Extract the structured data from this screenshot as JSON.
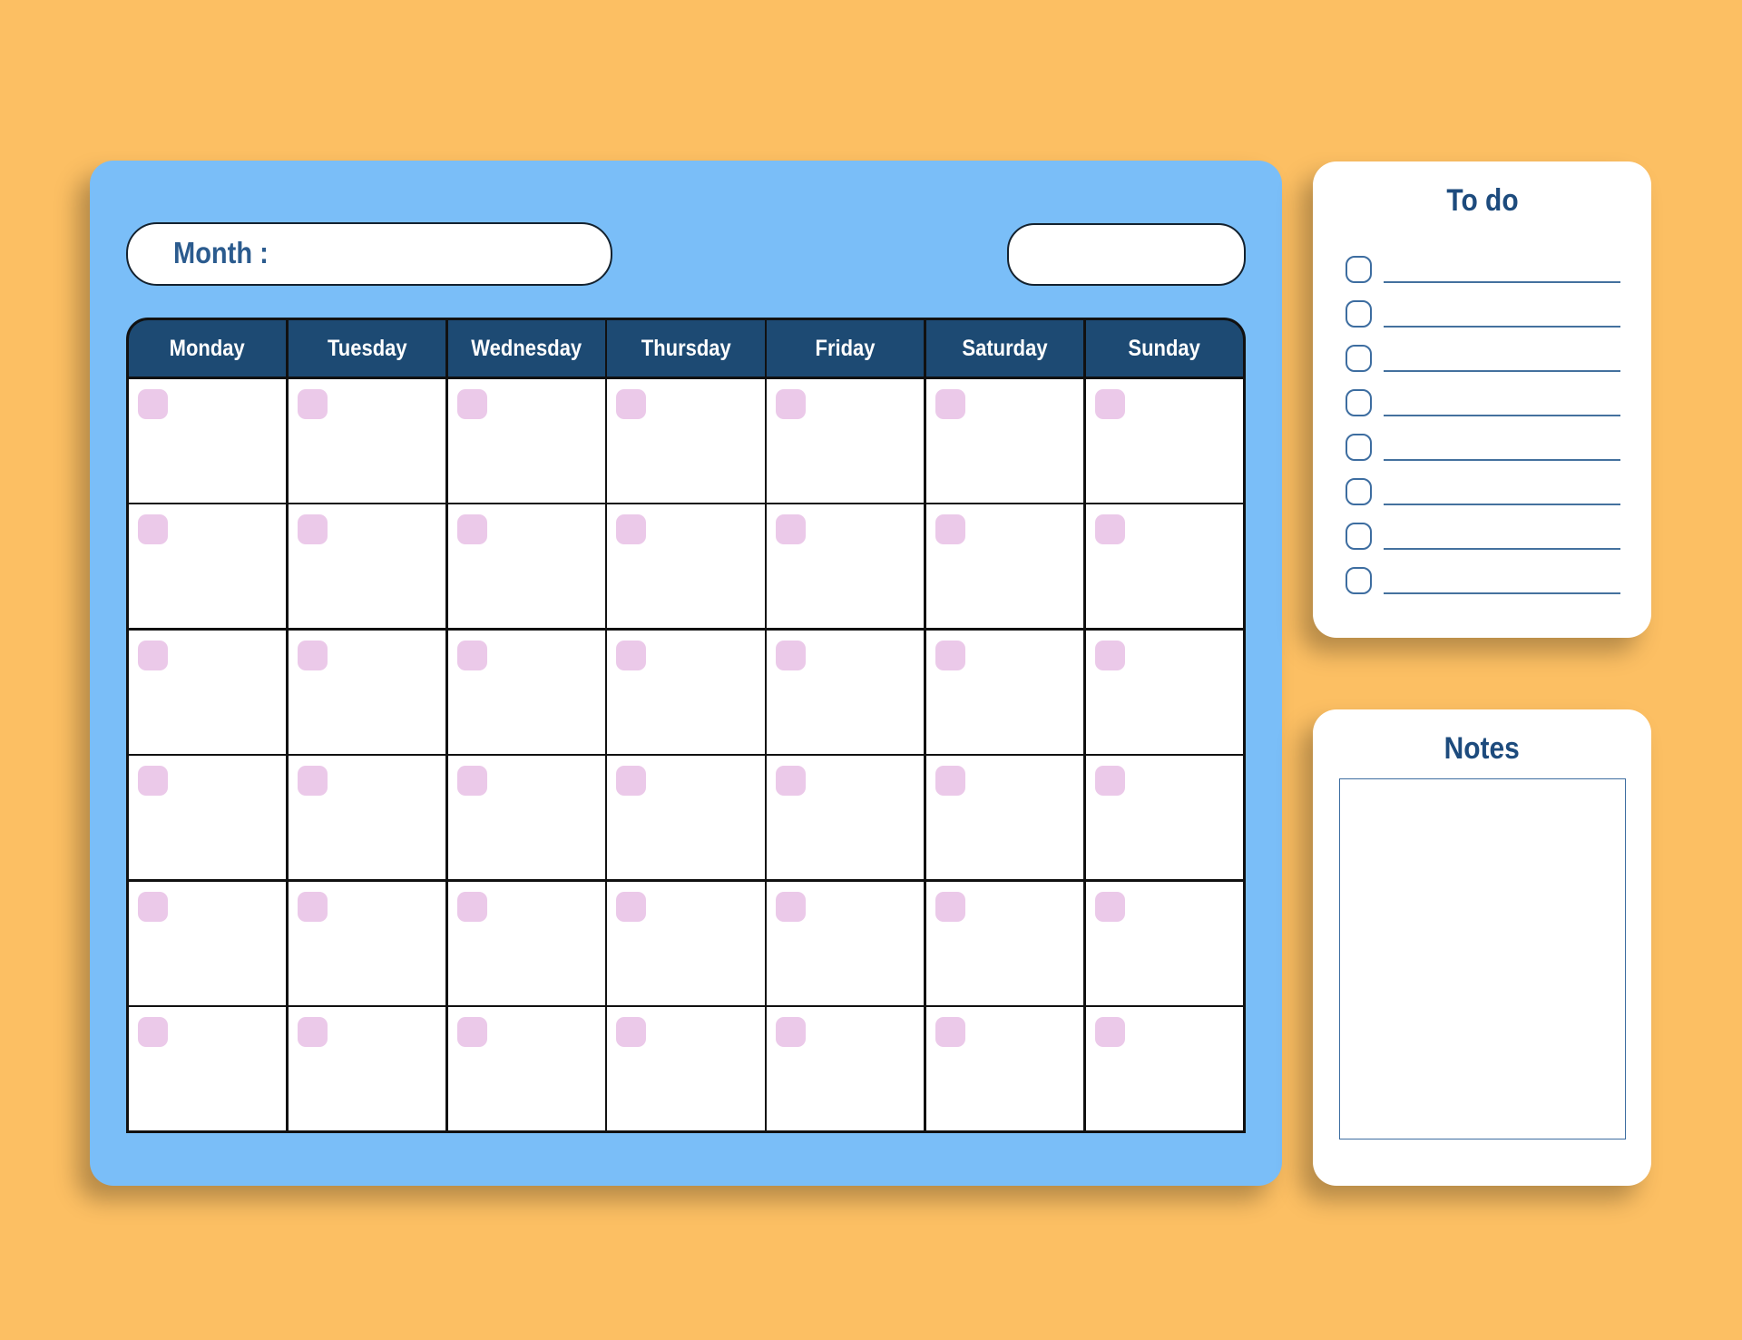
{
  "page": {
    "background_color": "#FCBF63"
  },
  "planner": {
    "panel_color": "#7ABEF8",
    "month_label": "Month :",
    "month_value": "",
    "side_field_value": "",
    "weekdays": [
      "Monday",
      "Tuesday",
      "Wednesday",
      "Thursday",
      "Friday",
      "Saturday",
      "Sunday"
    ],
    "week_rows": 6,
    "weekday_header_color": "#1D4A73",
    "weekday_text_color": "#FFFFFF",
    "grid_line_color": "#111111",
    "date_chip_color": "#EBC9E9"
  },
  "todo": {
    "title": "To do",
    "item_count": 8,
    "items": [
      "",
      "",
      "",
      "",
      "",
      "",
      "",
      ""
    ]
  },
  "notes": {
    "title": "Notes",
    "content": ""
  },
  "accents": {
    "month_text_color": "#2B5B8E",
    "card_title_color": "#1D4B7D",
    "checkbox_border_color": "#3D6DA0",
    "rule_line_color": "#44719E"
  }
}
